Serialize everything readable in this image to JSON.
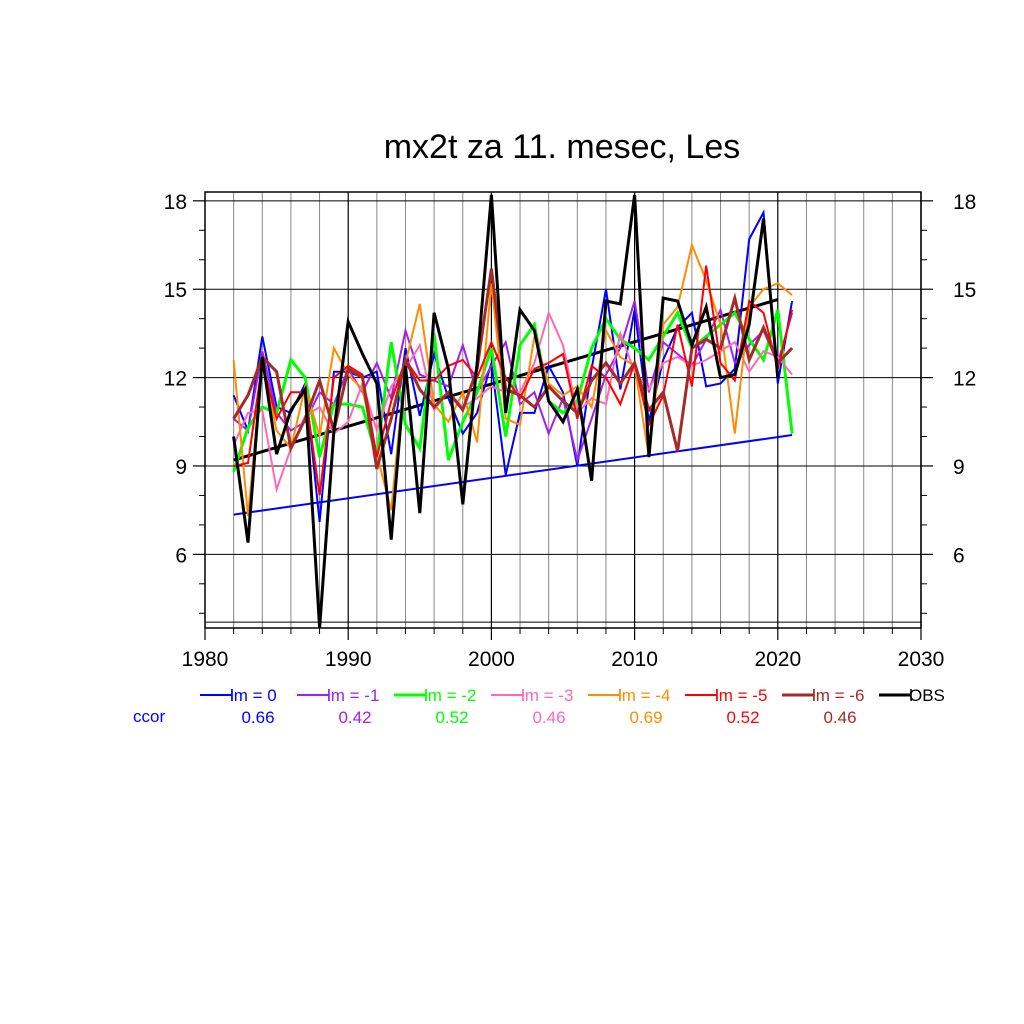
{
  "chart_data": {
    "type": "line",
    "title": "mx2t za 11. mesec, Les",
    "xlabel": "",
    "ylabel": "",
    "xlim": [
      1980,
      2030
    ],
    "ylim": [
      3.5,
      18.3
    ],
    "xticks": [
      "1980",
      "1990",
      "2000",
      "2010",
      "2020",
      "2030"
    ],
    "yticks": [
      "6",
      "9",
      "12",
      "15",
      "18"
    ],
    "grid": true,
    "legend_position": "bottom",
    "ccor_label": "ccor",
    "colors": {
      "lm0": "#0000ff",
      "lm1": "#a020f0",
      "lm2": "#00ff00",
      "lm3": "#ff69b4",
      "lm4": "#ff8c00",
      "lm5": "#ff0000",
      "lm6": "#a52a2a",
      "obs": "#000000"
    },
    "series": [
      {
        "key": "lm0",
        "name": "lm = 0",
        "ccor": "0.66",
        "color": "#0000ff",
        "width": 2,
        "x": [
          1982,
          1983,
          1984,
          1985,
          1986,
          1987,
          1988,
          1989,
          1990,
          1991,
          1992,
          1993,
          1994,
          1995,
          1996,
          1997,
          1998,
          1999,
          2000,
          2001,
          2002,
          2003,
          2004,
          2005,
          2006,
          2007,
          2008,
          2009,
          2010,
          2011,
          2012,
          2013,
          2014,
          2015,
          2016,
          2017,
          2018,
          2019,
          2020,
          2021
        ],
        "y": [
          11.4,
          10.2,
          13.4,
          11.0,
          10.8,
          11.8,
          7.1,
          12.2,
          12.2,
          12.0,
          12.2,
          9.4,
          13.0,
          10.7,
          12.8,
          11.3,
          10.1,
          10.8,
          12.5,
          8.7,
          10.8,
          10.8,
          12.4,
          11.5,
          9.0,
          12.3,
          15.0,
          11.6,
          14.3,
          10.5,
          12.6,
          13.7,
          14.2,
          11.7,
          11.8,
          12.3,
          16.7,
          17.6,
          11.8,
          14.6
        ]
      },
      {
        "key": "lm1",
        "name": "lm = -1",
        "ccor": "0.42",
        "color": "#a020f0",
        "width": 2,
        "x": [
          1982,
          1983,
          1984,
          1985,
          1986,
          1987,
          1988,
          1989,
          1990,
          1991,
          1992,
          1993,
          1994,
          1995,
          1996,
          1997,
          1998,
          1999,
          2000,
          2001,
          2002,
          2003,
          2004,
          2005,
          2006,
          2007,
          2008,
          2009,
          2010,
          2011,
          2012,
          2013,
          2014,
          2015,
          2016,
          2017,
          2018,
          2019,
          2020,
          2021
        ],
        "y": [
          10.6,
          10.2,
          12.9,
          10.8,
          10.2,
          10.5,
          11.5,
          11.1,
          12.3,
          11.5,
          12.5,
          11.3,
          13.6,
          12.1,
          11.9,
          11.7,
          13.1,
          11.5,
          12.4,
          13.2,
          11.1,
          11.5,
          10.1,
          11.3,
          9.2,
          10.6,
          12.1,
          13.0,
          14.6,
          11.5,
          13.2,
          12.8,
          12.4,
          13.3,
          14.3,
          12.5,
          13.1,
          13.6,
          12.5,
          14.2
        ]
      },
      {
        "key": "lm2",
        "name": "lm = -2",
        "ccor": "0.52",
        "color": "#00ff00",
        "width": 3,
        "x": [
          1982,
          1983,
          1984,
          1985,
          1986,
          1987,
          1988,
          1989,
          1990,
          1991,
          1992,
          1993,
          1994,
          1995,
          1996,
          1997,
          1998,
          1999,
          2000,
          2001,
          2002,
          2003,
          2004,
          2005,
          2006,
          2007,
          2008,
          2009,
          2010,
          2011,
          2012,
          2013,
          2014,
          2015,
          2016,
          2017,
          2018,
          2019,
          2020,
          2021
        ],
        "y": [
          8.8,
          10.3,
          11.0,
          10.8,
          12.6,
          12.0,
          9.3,
          11.1,
          11.1,
          11.0,
          9.3,
          13.2,
          10.4,
          9.6,
          13.5,
          9.2,
          10.5,
          11.5,
          13.0,
          10.0,
          13.1,
          13.8,
          11.2,
          10.8,
          11.2,
          13.0,
          14.0,
          13.3,
          13.0,
          12.6,
          13.4,
          14.2,
          13.0,
          13.4,
          13.8,
          14.2,
          13.3,
          12.6,
          14.3,
          10.1
        ]
      },
      {
        "key": "lm3",
        "name": "lm = -3",
        "ccor": "0.46",
        "color": "#ff69b4",
        "width": 2,
        "x": [
          1982,
          1983,
          1984,
          1985,
          1986,
          1987,
          1988,
          1989,
          1990,
          1991,
          1992,
          1993,
          1994,
          1995,
          1996,
          1997,
          1998,
          1999,
          2000,
          2001,
          2002,
          2003,
          2004,
          2005,
          2006,
          2007,
          2008,
          2009,
          2010,
          2011,
          2012,
          2013,
          2014,
          2015,
          2016,
          2017,
          2018,
          2019,
          2020,
          2021
        ],
        "y": [
          9.7,
          10.8,
          10.9,
          8.2,
          9.6,
          10.7,
          11.0,
          10.1,
          10.5,
          11.8,
          10.2,
          11.7,
          12.3,
          13.1,
          10.9,
          11.5,
          11.0,
          11.3,
          11.7,
          11.5,
          11.5,
          12.5,
          14.2,
          13.1,
          10.8,
          11.3,
          11.1,
          13.5,
          12.2,
          11.6,
          12.5,
          12.7,
          12.4,
          12.6,
          12.9,
          13.2,
          12.2,
          12.9,
          12.7,
          12.1
        ]
      },
      {
        "key": "lm4",
        "name": "lm = -4",
        "ccor": "0.69",
        "color": "#ff8c00",
        "width": 2,
        "x": [
          1982,
          1983,
          1984,
          1985,
          1986,
          1987,
          1988,
          1989,
          1990,
          1991,
          1992,
          1993,
          1994,
          1995,
          1996,
          1997,
          1998,
          1999,
          2000,
          2001,
          2002,
          2003,
          2004,
          2005,
          2006,
          2007,
          2008,
          2009,
          2010,
          2011,
          2012,
          2013,
          2014,
          2015,
          2016,
          2017,
          2018,
          2019,
          2020,
          2021
        ],
        "y": [
          12.6,
          7.3,
          12.5,
          10.2,
          9.6,
          11.7,
          10.0,
          13.0,
          12.1,
          11.6,
          9.4,
          7.5,
          12.5,
          14.5,
          11.1,
          10.5,
          11.5,
          9.8,
          15.2,
          10.6,
          10.4,
          13.4,
          11.8,
          11.4,
          11.7,
          11.0,
          13.6,
          12.7,
          12.4,
          9.3,
          13.8,
          14.4,
          16.5,
          15.3,
          13.8,
          10.1,
          14.4,
          15.0,
          15.2,
          14.8
        ]
      },
      {
        "key": "lm5",
        "name": "lm = -5",
        "ccor": "0.52",
        "color": "#ff0000",
        "width": 2,
        "x": [
          1982,
          1983,
          1984,
          1985,
          1986,
          1987,
          1988,
          1989,
          1990,
          1991,
          1992,
          1993,
          1994,
          1995,
          1996,
          1997,
          1998,
          1999,
          2000,
          2001,
          2002,
          2003,
          2004,
          2005,
          2006,
          2007,
          2008,
          2009,
          2010,
          2011,
          2012,
          2013,
          2014,
          2015,
          2016,
          2017,
          2018,
          2019,
          2020,
          2021
        ],
        "y": [
          9.0,
          9.1,
          12.5,
          10.6,
          11.5,
          11.5,
          8.0,
          12.0,
          12.4,
          12.1,
          9.3,
          11.2,
          12.6,
          11.9,
          11.9,
          12.4,
          12.6,
          12.0,
          13.2,
          12.0,
          11.3,
          12.3,
          12.5,
          12.8,
          10.6,
          12.4,
          12.0,
          11.1,
          12.5,
          10.4,
          11.4,
          13.8,
          11.7,
          15.8,
          12.5,
          11.9,
          14.6,
          14.2,
          12.3,
          14.3
        ]
      },
      {
        "key": "lm6",
        "name": "lm = -6",
        "ccor": "0.46",
        "color": "#a52a2a",
        "width": 3,
        "x": [
          1982,
          1983,
          1984,
          1985,
          1986,
          1987,
          1988,
          1989,
          1990,
          1991,
          1992,
          1993,
          1994,
          1995,
          1996,
          1997,
          1998,
          1999,
          2000,
          2001,
          2002,
          2003,
          2004,
          2005,
          2006,
          2007,
          2008,
          2009,
          2010,
          2011,
          2012,
          2013,
          2014,
          2015,
          2016,
          2017,
          2018,
          2019,
          2020,
          2021
        ],
        "y": [
          10.6,
          11.4,
          12.7,
          12.2,
          9.6,
          10.6,
          11.9,
          10.2,
          12.3,
          12.0,
          8.9,
          10.6,
          12.6,
          11.6,
          11.0,
          11.5,
          10.9,
          12.3,
          15.7,
          11.6,
          11.4,
          11.0,
          11.7,
          11.2,
          10.8,
          11.9,
          12.5,
          11.8,
          12.5,
          10.9,
          11.5,
          9.5,
          13.0,
          13.3,
          13.0,
          14.7,
          12.6,
          13.7,
          12.5,
          13.0
        ]
      },
      {
        "key": "obs",
        "name": "OBS",
        "ccor": "",
        "color": "#000000",
        "width": 3,
        "x": [
          1982,
          1983,
          1984,
          1985,
          1986,
          1987,
          1988,
          1989,
          1990,
          1991,
          1992,
          1993,
          1994,
          1995,
          1996,
          1997,
          1998,
          1999,
          2000,
          2001,
          2002,
          2003,
          2004,
          2005,
          2006,
          2007,
          2008,
          2009,
          2010,
          2011,
          2012,
          2013,
          2014,
          2015,
          2016,
          2017,
          2018,
          2019,
          2020
        ],
        "y": [
          10.0,
          6.4,
          12.7,
          9.4,
          10.9,
          11.6,
          3.5,
          10.2,
          13.9,
          12.8,
          11.8,
          6.5,
          12.4,
          7.4,
          14.2,
          12.3,
          7.7,
          12.5,
          18.2,
          10.8,
          14.3,
          13.6,
          11.2,
          10.5,
          11.6,
          8.5,
          14.6,
          14.5,
          18.2,
          9.3,
          14.7,
          14.6,
          13.1,
          14.4,
          12.0,
          12.1,
          13.8,
          17.4,
          12.0
        ]
      }
    ],
    "trend_lines": [
      {
        "key": "trend-lm0",
        "color": "#0000ff",
        "width": 2,
        "x": [
          1982,
          2021
        ],
        "y": [
          7.35,
          10.05
        ]
      },
      {
        "key": "trend-obs",
        "color": "#000000",
        "width": 3,
        "x": [
          1982,
          2020
        ],
        "y": [
          9.2,
          14.65
        ]
      }
    ]
  }
}
